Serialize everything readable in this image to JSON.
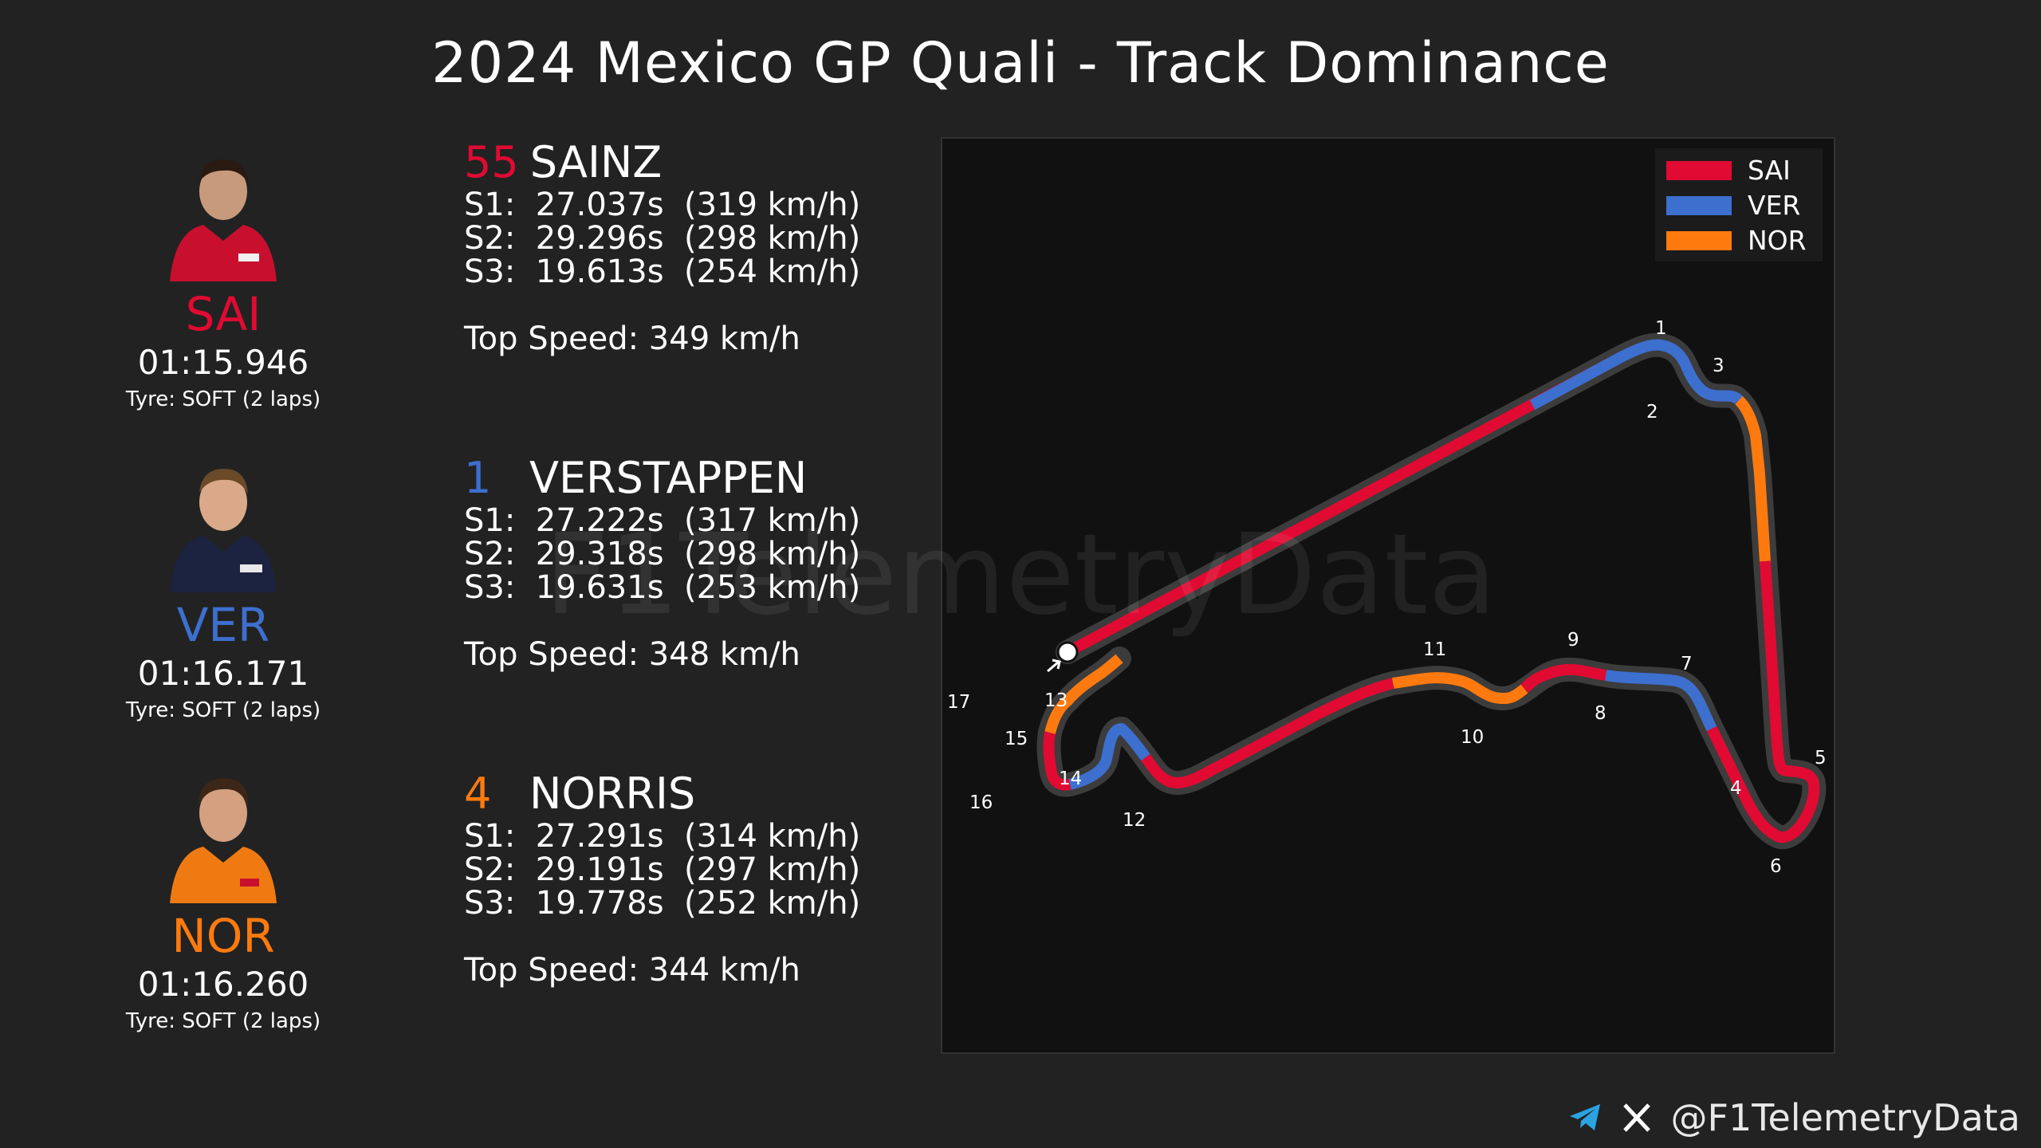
{
  "title": "2024 Mexico GP Quali - Track Dominance",
  "colors": {
    "SAI": "#e10a32",
    "VER": "#3d6fce",
    "NOR": "#ff7a0e",
    "background": "#222222",
    "map_bg": "#111111"
  },
  "drivers": [
    {
      "code": "SAI",
      "number": "55",
      "name": "SAINZ",
      "color": "#e10a32",
      "laptime": "01:15.946",
      "tyre": "Tyre: SOFT (2 laps)",
      "s1": "S1:  27.037s  (319 km/h)",
      "s2": "S2:  29.296s  (298 km/h)",
      "s3": "S3:  19.613s  (254 km/h)",
      "top_speed": "Top Speed: 349 km/h"
    },
    {
      "code": "VER",
      "number": "1",
      "name": "VERSTAPPEN",
      "color": "#3d6fce",
      "laptime": "01:16.171",
      "tyre": "Tyre: SOFT (2 laps)",
      "s1": "S1:  27.222s  (317 km/h)",
      "s2": "S2:  29.318s  (298 km/h)",
      "s3": "S3:  19.631s  (253 km/h)",
      "top_speed": "Top Speed: 348 km/h"
    },
    {
      "code": "NOR",
      "number": "4",
      "name": "NORRIS",
      "color": "#ff7a0e",
      "laptime": "01:16.260",
      "tyre": "Tyre: SOFT (2 laps)",
      "s1": "S1:  27.291s  (314 km/h)",
      "s2": "S2:  29.191s  (297 km/h)",
      "s3": "S3:  19.778s  (252 km/h)",
      "top_speed": "Top Speed: 344 km/h"
    }
  ],
  "legend": [
    {
      "label": "SAI",
      "color": "#e10a32"
    },
    {
      "label": "VER",
      "color": "#3d6fce"
    },
    {
      "label": "NOR",
      "color": "#ff7a0e"
    }
  ],
  "turns": [
    "1",
    "2",
    "3",
    "4",
    "5",
    "6",
    "7",
    "8",
    "9",
    "10",
    "11",
    "12",
    "13",
    "14",
    "15",
    "16",
    "17"
  ],
  "watermark": "F1TelemetryData",
  "footer": {
    "handle": "@F1TelemetryData",
    "icons": [
      "telegram-icon",
      "x-icon"
    ]
  }
}
